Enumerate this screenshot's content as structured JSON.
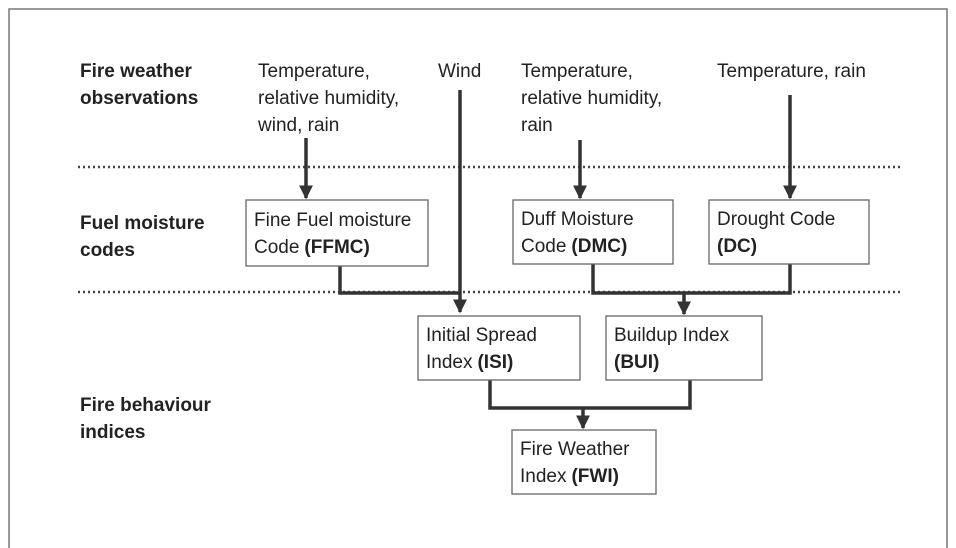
{
  "rows": [
    {
      "lines": [
        "Fire weather",
        "observations"
      ]
    },
    {
      "lines": [
        "Fuel moisture",
        "codes"
      ]
    },
    {
      "lines": [
        "Fire behaviour",
        "indices"
      ]
    }
  ],
  "inputs": [
    {
      "lines": [
        "Temperature,",
        "relative humidity,",
        "wind, rain"
      ]
    },
    {
      "lines": [
        "Wind"
      ]
    },
    {
      "lines": [
        "Temperature,",
        "relative humidity,",
        "rain"
      ]
    },
    {
      "lines": [
        "Temperature, rain"
      ]
    }
  ],
  "nodes": [
    {
      "lines": [
        "Fine Fuel moisture",
        "Code"
      ],
      "abbr": "(FFMC)"
    },
    {
      "lines": [
        "Duff Moisture",
        "Code"
      ],
      "abbr": "(DMC)"
    },
    {
      "lines": [
        "Drought Code"
      ],
      "abbr": "(DC)"
    },
    {
      "lines": [
        "Initial Spread",
        "Index"
      ],
      "abbr": "(ISI)"
    },
    {
      "lines": [
        "Buildup Index"
      ],
      "abbr": "(BUI)"
    },
    {
      "lines": [
        "Fire Weather",
        "Index"
      ],
      "abbr": "(FWI)"
    }
  ]
}
